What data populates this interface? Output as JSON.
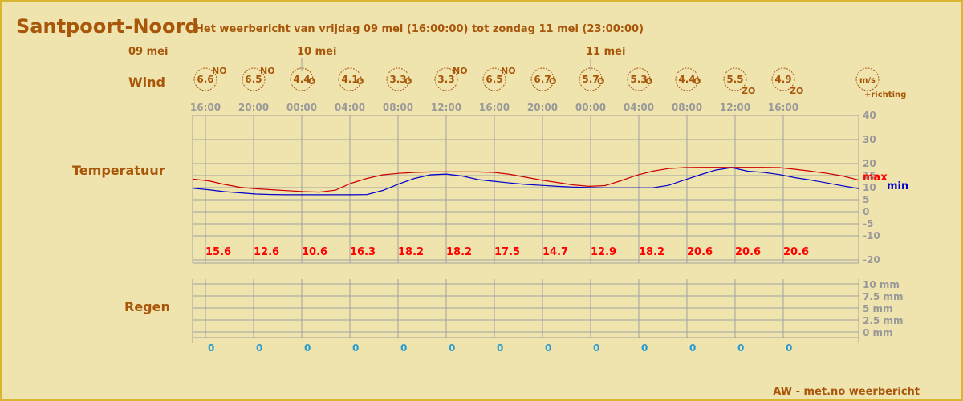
{
  "header": {
    "title": "Santpoort-Noord",
    "subtitle": "Het weerbericht van vrijdag 09 mei (16:00:00) tot zondag 11 mei (23:00:00)"
  },
  "footer": {
    "credit": "AW - met.no weerbericht"
  },
  "colors": {
    "background": "#f0e4ae",
    "border": "#d8b632",
    "text": "#a8560a",
    "grid": "#a0a0a0",
    "max_line": "#cc0000",
    "min_line": "#0000cc",
    "max_label": "#ff0000",
    "rain_label": "#2a9bd0",
    "axis_label": "#999999"
  },
  "chart_data": {
    "type": "line",
    "date_labels": [
      {
        "label": "09 mei",
        "at": "16:00"
      },
      {
        "label": "10 mei",
        "at": "00:00"
      },
      {
        "label": "11 mei",
        "at": "00:00"
      }
    ],
    "time_labels": [
      "16:00",
      "20:00",
      "00:00",
      "04:00",
      "08:00",
      "12:00",
      "16:00",
      "20:00",
      "00:00",
      "04:00",
      "08:00",
      "12:00",
      "16:00"
    ],
    "wind": {
      "row_label": "Wind",
      "unit_label": "m/s",
      "direction_label": "+richting",
      "speeds": [
        "6.6",
        "6.5",
        "4.4",
        "4.1",
        "3.3",
        "3.3",
        "6.5",
        "6.7",
        "5.7",
        "5.3",
        "4.4",
        "5.5",
        "4.9"
      ],
      "directions": [
        "NO",
        "NO",
        "O",
        "O",
        "O",
        "NO",
        "NO",
        "O",
        "O",
        "O",
        "O",
        "ZO",
        "ZO"
      ]
    },
    "temperature": {
      "row_label": "Temperatuur",
      "axis_ticks": [
        "40",
        "30",
        "20",
        "15",
        "10",
        "5",
        "0",
        "-5",
        "-10",
        "-20"
      ],
      "max_legend": "max",
      "min_legend": "min",
      "max_values": [
        "15.6",
        "12.6",
        "10.6",
        "16.3",
        "18.2",
        "18.2",
        "17.5",
        "14.7",
        "12.9",
        "18.2",
        "20.6",
        "20.6",
        "20.6"
      ],
      "max_series": [
        14.2,
        13.5,
        12.0,
        10.8,
        10.2,
        9.8,
        9.4,
        9.0,
        8.8,
        9.6,
        12.5,
        14.5,
        16.0,
        16.6,
        17.0,
        17.2,
        17.2,
        17.2,
        17.2,
        17.0,
        16.2,
        15.0,
        13.8,
        12.8,
        11.8,
        11.2,
        11.5,
        13.5,
        15.8,
        17.5,
        18.6,
        19.0,
        19.1,
        19.1,
        19.1,
        19.1,
        19.1,
        19.0,
        18.3,
        17.5,
        16.6,
        15.5,
        13.8
      ],
      "min_series": [
        10.4,
        9.8,
        9.0,
        8.5,
        8.0,
        7.8,
        7.7,
        7.7,
        7.7,
        7.7,
        7.7,
        7.8,
        9.5,
        12.2,
        14.5,
        16.0,
        16.3,
        15.5,
        14.0,
        13.3,
        12.6,
        12.0,
        11.6,
        11.2,
        10.9,
        10.7,
        10.6,
        10.6,
        10.6,
        10.6,
        11.6,
        13.8,
        16.0,
        18.0,
        19.0,
        17.5,
        17.0,
        16.1,
        14.8,
        13.8,
        12.6,
        11.4,
        10.3
      ]
    },
    "rain": {
      "row_label": "Regen",
      "axis_ticks": [
        "10 mm",
        "7.5 mm",
        "5 mm",
        "2.5 mm",
        "0 mm"
      ],
      "values": [
        "0",
        "0",
        "0",
        "0",
        "0",
        "0",
        "0",
        "0",
        "0",
        "0",
        "0",
        "0",
        "0"
      ]
    }
  }
}
